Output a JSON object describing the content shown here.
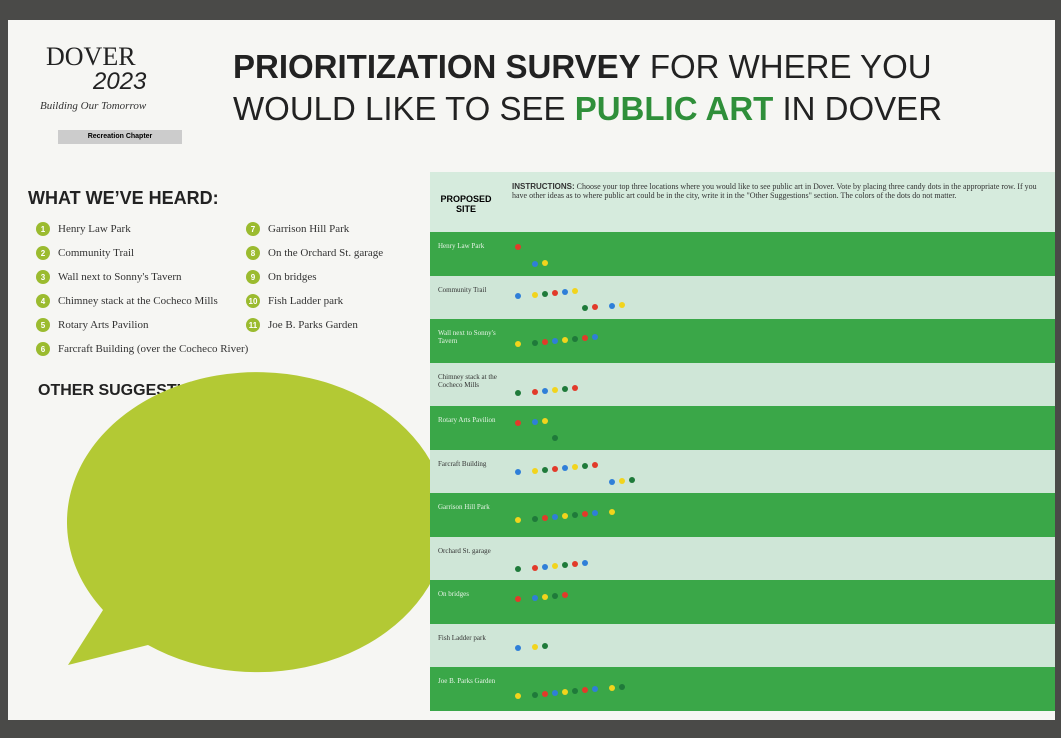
{
  "logo": {
    "name": "DOVER",
    "year": "2023",
    "tagline": "Building Our Tomorrow",
    "chapter": "Recreation Chapter"
  },
  "title": {
    "bold1": "PRIORITIZATION SURVEY",
    "plain1": "FOR WHERE YOU",
    "plain2": "WOULD LIKE TO SEE",
    "green": "PUBLIC ART",
    "plain3": "IN DOVER"
  },
  "heard": {
    "heading": "WHAT WE’VE HEARD:",
    "items": [
      {
        "number": 1,
        "label": "Henry Law Park"
      },
      {
        "number": 2,
        "label": "Community Trail"
      },
      {
        "number": 3,
        "label": "Wall next to Sonny's Tavern"
      },
      {
        "number": 4,
        "label": "Chimney stack at the Cocheco Mills"
      },
      {
        "number": 5,
        "label": "Rotary Arts Pavilion"
      },
      {
        "number": 6,
        "label": "Farcraft Building (over the Cocheco River)"
      },
      {
        "number": 7,
        "label": "Garrison Hill Park"
      },
      {
        "number": 8,
        "label": "On the Orchard St. garage"
      },
      {
        "number": 9,
        "label": "On bridges"
      },
      {
        "number": 10,
        "label": "Fish Ladder park"
      },
      {
        "number": 11,
        "label": "Joe B. Parks Garden"
      }
    ]
  },
  "other": {
    "heading": "OTHER SUGGESTIONS:"
  },
  "table": {
    "site_header": "PROPOSED SITE",
    "instructions_label": "INSTRUCTIONS:",
    "instructions": "Choose your top three locations where you would like to see public art in Dover. Vote by placing three candy dots in the appropriate row. If you have other ideas as to where public art could be in the city, write it in the \"Other Suggestions\" section. The colors of the dots do not matter.",
    "rows": [
      "Henry Law Park",
      "Community Trail",
      "Wall next to Sonny's Tavern",
      "Chimney stack at the Cocheco Mills",
      "Rotary Arts Pavilion",
      "Farcraft Building",
      "Garrison Hill Park",
      "Orchard St. garage",
      "On bridges",
      "Fish Ladder park",
      "Joe B. Parks Garden"
    ]
  }
}
